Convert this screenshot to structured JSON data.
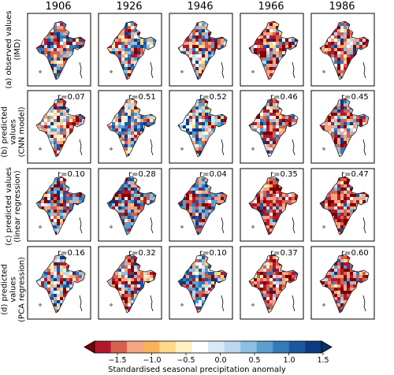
{
  "years": [
    "1906",
    "1926",
    "1946",
    "1966",
    "1986"
  ],
  "rows": [
    {
      "label_line1": "(a) observed values",
      "label_line2": "(IMD)",
      "r_values": [
        null,
        null,
        null,
        null,
        null
      ]
    },
    {
      "label_line1": "(b) predicted values",
      "label_line2": "(CNN model)",
      "r_values": [
        "r=0.07",
        "r=0.51",
        "r=0.52",
        "r=0.46",
        "r=0.45"
      ]
    },
    {
      "label_line1": "(c) predicted values",
      "label_line2": "(linear regression)",
      "r_values": [
        "r=0.10",
        "r=0.28",
        "r=0.04",
        "r=0.35",
        "r=0.47"
      ]
    },
    {
      "label_line1": "(d) predicted values",
      "label_line2": "(PCA regression)",
      "r_values": [
        "r=0.16",
        "r=0.32",
        "r=0.10",
        "r=0.37",
        "r=0.60"
      ]
    }
  ],
  "colorbar": {
    "ticks": [
      "−1.5",
      "−1.0",
      "−0.5",
      "0.0",
      "0.5",
      "1.0",
      "1.5"
    ],
    "label": "Standardised seasonal precipitation anomaly",
    "colors": [
      "#7f0000",
      "#b2182b",
      "#d6604d",
      "#f4a582",
      "#f9b25c",
      "#fdd98a",
      "#fff1c4",
      "#ffffff",
      "#dbe9f6",
      "#bcd7ee",
      "#8dc0e0",
      "#5b9fcf",
      "#3479b9",
      "#1c56a0",
      "#0b3a80",
      "#08306b"
    ]
  }
}
